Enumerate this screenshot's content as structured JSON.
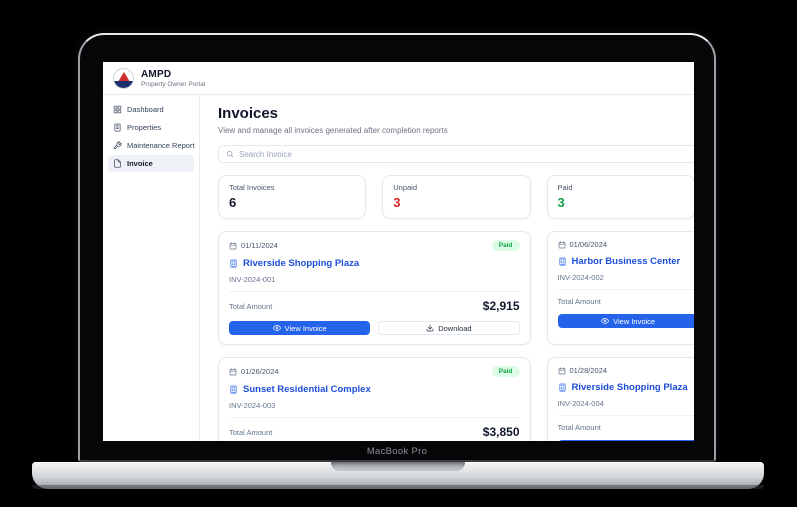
{
  "device": {
    "label": "MacBook Pro"
  },
  "brand": {
    "name": "AMPD",
    "tagline": "Property Owner Portal",
    "logo_icon": "ampd-badge-logo"
  },
  "sidebar": {
    "items": [
      {
        "icon": "dashboard-grid-icon",
        "label": "Dashboard",
        "active": false
      },
      {
        "icon": "properties-building-icon",
        "label": "Properties",
        "active": false
      },
      {
        "icon": "maintenance-wrench-icon",
        "label": "Maintenance Report",
        "active": false
      },
      {
        "icon": "invoice-file-icon",
        "label": "Invoice",
        "active": true
      }
    ]
  },
  "page": {
    "title": "Invoices",
    "subtitle": "View and manage all invoices generated after completion reports"
  },
  "search": {
    "placeholder": "Search Invoice",
    "icon": "search-icon"
  },
  "stats": [
    {
      "label": "Total Invoices",
      "value": "6",
      "color": "#0f172a"
    },
    {
      "label": "Unpaid",
      "value": "3",
      "color": "#dc2626"
    },
    {
      "label": "Paid",
      "value": "3",
      "color": "#16a34a"
    }
  ],
  "labels": {
    "total_amount": "Total Amount",
    "view_invoice": "View Invoice",
    "download": "Download"
  },
  "invoices": [
    {
      "date": "01/11/2024",
      "status": "Paid",
      "name": "Riverside Shopping Plaza",
      "number": "INV-2024-001",
      "amount": "$2,915"
    },
    {
      "date": "01/06/2024",
      "status": null,
      "name": "Harbor Business Center",
      "number": "INV-2024-002",
      "amount": null
    },
    {
      "date": "01/26/2024",
      "status": "Paid",
      "name": "Sunset Residential Complex",
      "number": "INV-2024-003",
      "amount": "$3,850"
    },
    {
      "date": "01/28/2024",
      "status": null,
      "name": "Riverside Shopping Plaza",
      "number": "INV-2024-004",
      "amount": null
    }
  ],
  "colors": {
    "primary_blue": "#2563eb",
    "link_blue": "#1d4ed8",
    "paid_green": "#16a34a",
    "paid_badge_bg": "#dcfce7",
    "unpaid_red": "#dc2626"
  }
}
